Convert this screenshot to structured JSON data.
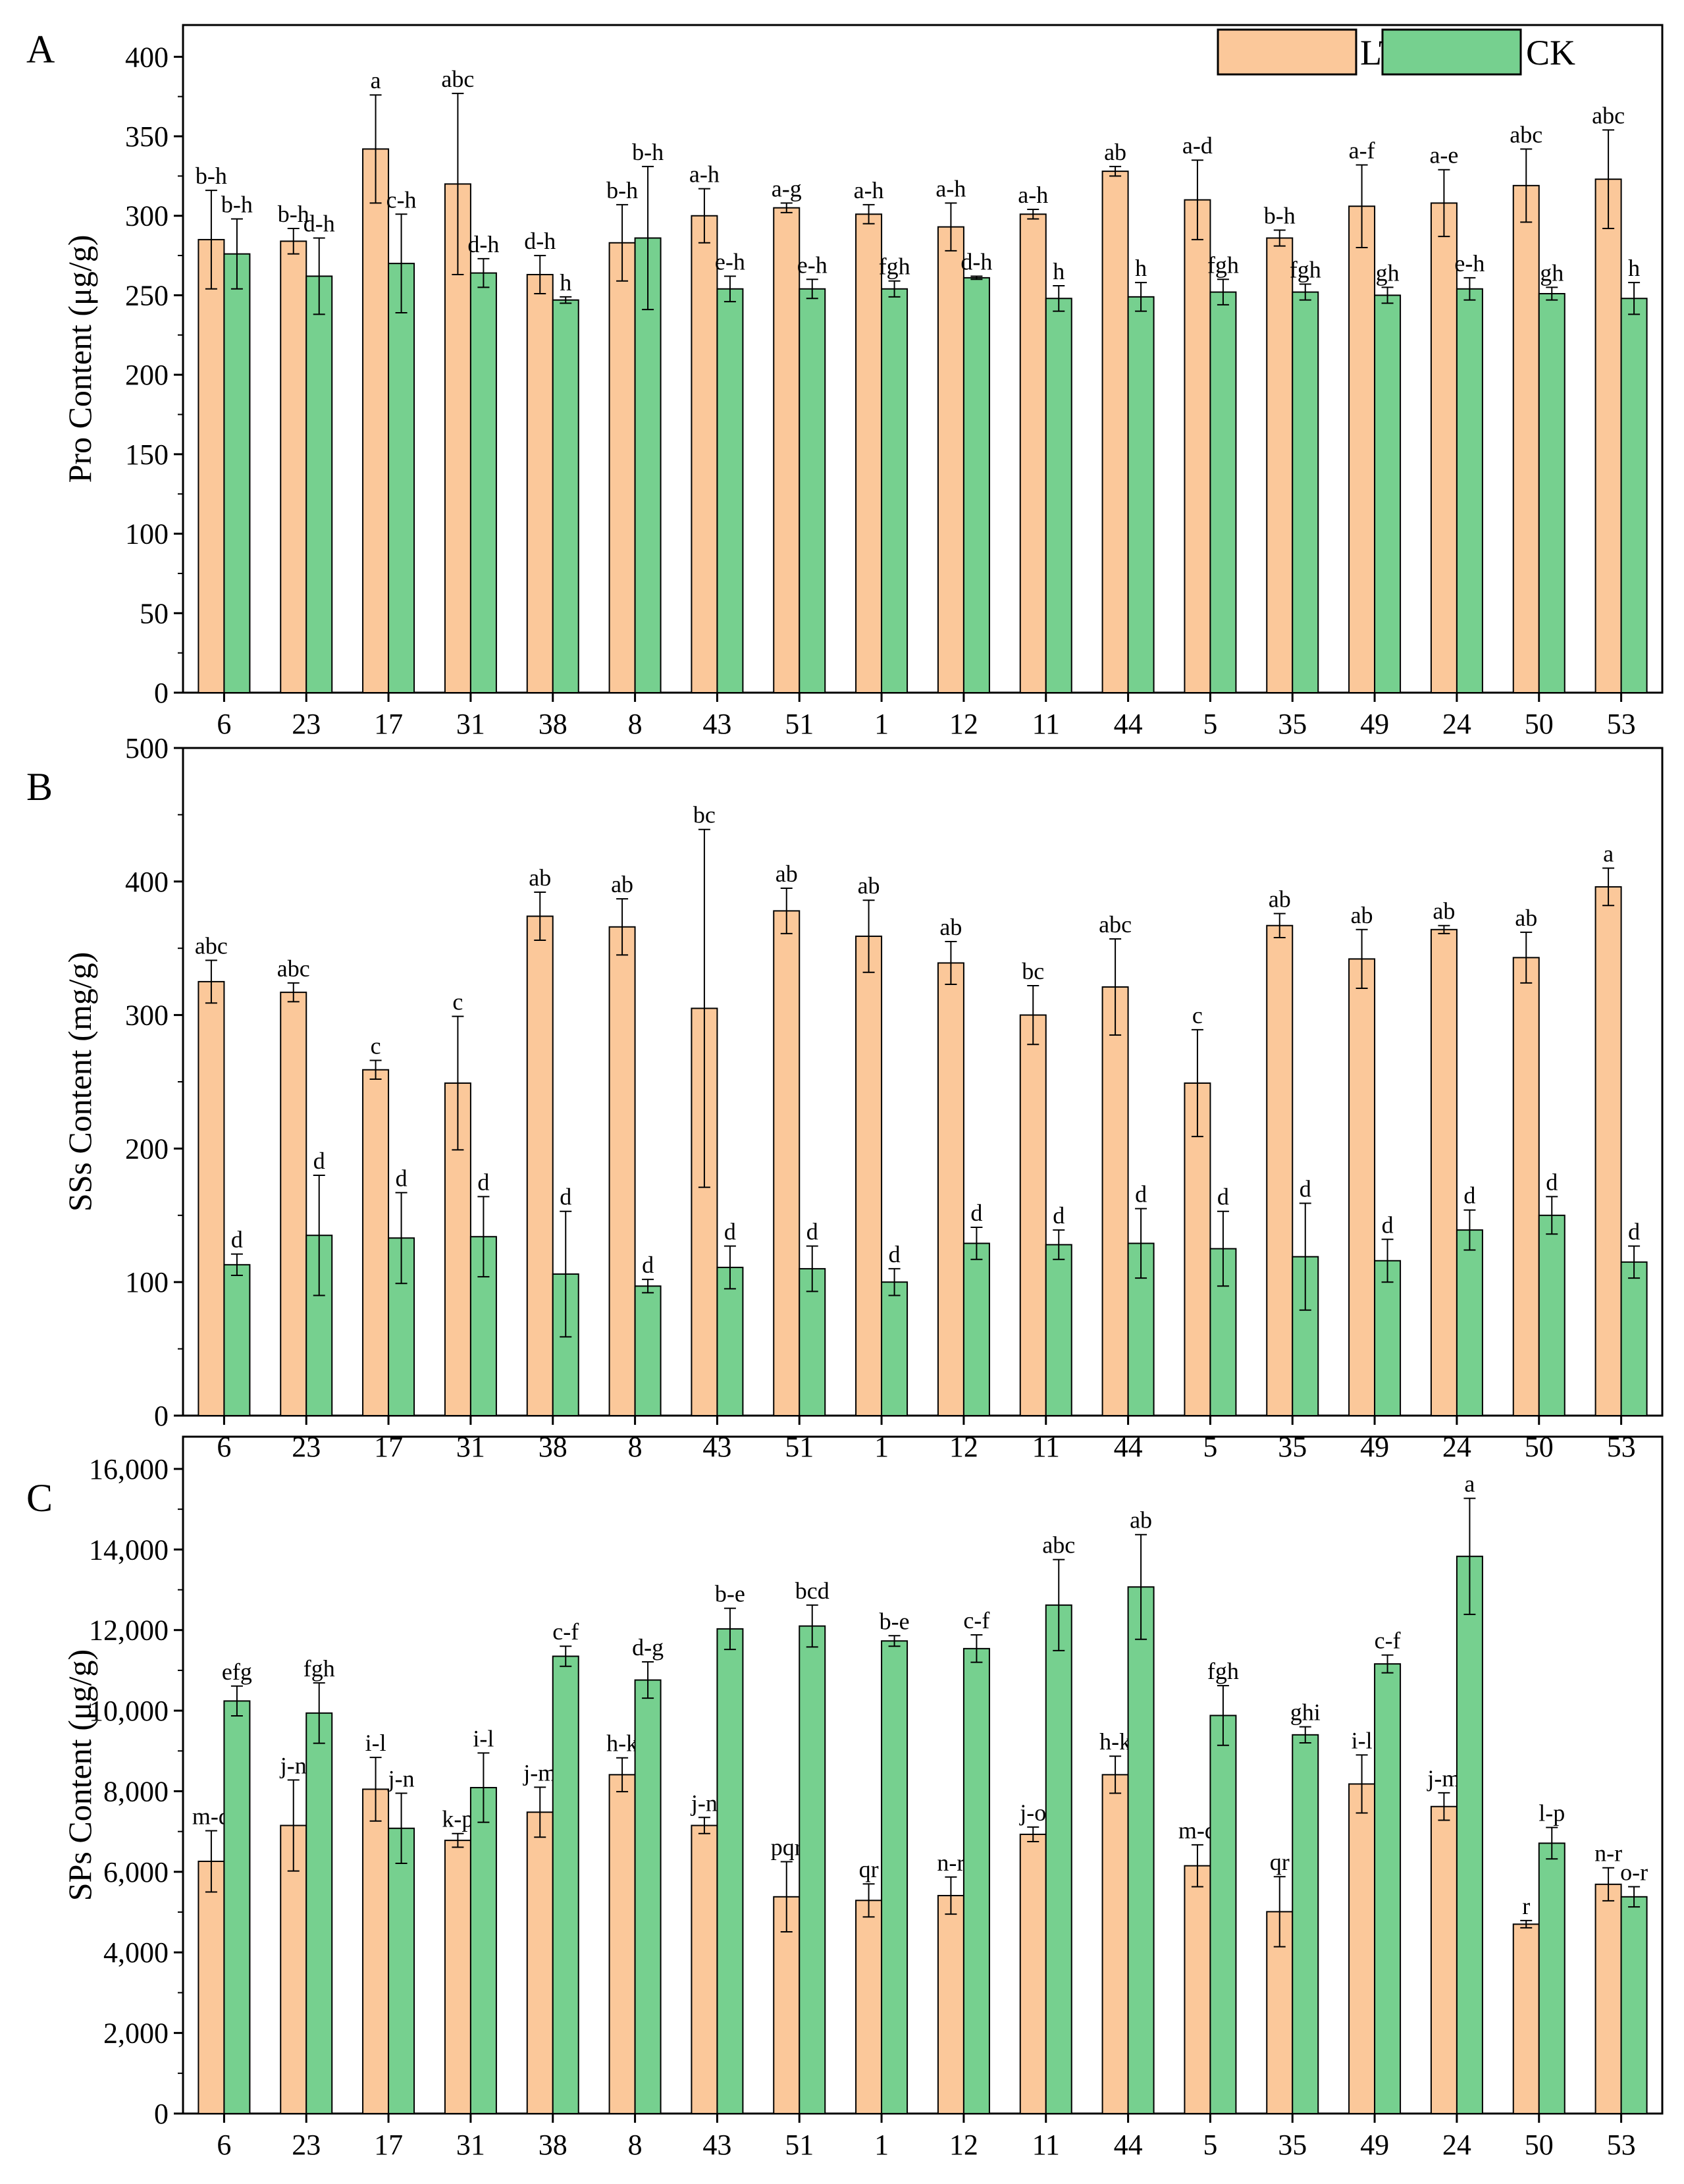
{
  "figure": {
    "legend": [
      {
        "key": "LT",
        "label": "LT",
        "color": "#fbc89a"
      },
      {
        "key": "CK",
        "label": "CK",
        "color": "#76d08f"
      }
    ]
  },
  "chart_data": [
    {
      "type": "bar",
      "panel": "A",
      "ylabel": "Pro Content (μg/g)",
      "ylim": [
        0,
        420
      ],
      "ticks": [
        0,
        50,
        100,
        150,
        200,
        250,
        300,
        350,
        400
      ],
      "tick_labels": [
        "0",
        "50",
        "100",
        "150",
        "200",
        "250",
        "300",
        "350",
        "400"
      ],
      "categories": [
        "6",
        "23",
        "17",
        "31",
        "38",
        "8",
        "43",
        "51",
        "1",
        "12",
        "11",
        "44",
        "5",
        "35",
        "49",
        "24",
        "50",
        "53"
      ],
      "series": [
        {
          "name": "LT",
          "values": [
            285,
            284,
            342,
            320,
            263,
            283,
            300,
            305,
            301,
            293,
            301,
            328,
            310,
            286,
            306,
            308,
            319,
            323
          ],
          "errors": [
            31,
            8,
            34,
            57,
            12,
            24,
            17,
            3,
            6,
            15,
            3,
            3,
            25,
            5,
            26,
            21,
            23,
            31
          ],
          "letters": [
            "b-h",
            "b-h",
            "a",
            "abc",
            "d-h",
            "b-h",
            "a-h",
            "a-g",
            "a-h",
            "a-h",
            "a-h",
            "ab",
            "a-d",
            "b-h",
            "a-f",
            "a-e",
            "abc",
            "abc"
          ]
        },
        {
          "name": "CK",
          "values": [
            276,
            262,
            270,
            264,
            247,
            286,
            254,
            254,
            254,
            261,
            248,
            249,
            252,
            252,
            250,
            254,
            251,
            248
          ],
          "errors": [
            22,
            24,
            31,
            9,
            2,
            45,
            8,
            6,
            5,
            1,
            8,
            9,
            8,
            5,
            5,
            7,
            4,
            10
          ],
          "letters": [
            "b-h",
            "d-h",
            "c-h",
            "d-h",
            "h",
            "b-h",
            "e-h",
            "e-h",
            "fgh",
            "d-h",
            "h",
            "h",
            "fgh",
            "fgh",
            "gh",
            "e-h",
            "gh",
            "h"
          ]
        }
      ]
    },
    {
      "type": "bar",
      "panel": "B",
      "ylabel": "SSs Content (mg/g)",
      "ylim": [
        0,
        500
      ],
      "ticks": [
        0,
        100,
        200,
        300,
        400,
        500
      ],
      "tick_labels": [
        "0",
        "100",
        "200",
        "300",
        "400",
        "500"
      ],
      "categories": [
        "6",
        "23",
        "17",
        "31",
        "38",
        "8",
        "43",
        "51",
        "1",
        "12",
        "11",
        "44",
        "5",
        "35",
        "49",
        "24",
        "50",
        "53"
      ],
      "series": [
        {
          "name": "LT",
          "values": [
            325,
            317,
            259,
            249,
            374,
            366,
            305,
            378,
            359,
            339,
            300,
            321,
            249,
            367,
            342,
            364,
            343,
            396
          ],
          "errors": [
            16,
            7,
            7,
            50,
            18,
            21,
            134,
            17,
            27,
            16,
            22,
            36,
            40,
            9,
            22,
            3,
            19,
            14
          ],
          "letters": [
            "abc",
            "abc",
            "c",
            "c",
            "ab",
            "ab",
            "bc",
            "ab",
            "ab",
            "ab",
            "bc",
            "abc",
            "c",
            "ab",
            "ab",
            "ab",
            "ab",
            "a"
          ]
        },
        {
          "name": "CK",
          "values": [
            113,
            135,
            133,
            134,
            106,
            97,
            111,
            110,
            100,
            129,
            128,
            129,
            125,
            119,
            116,
            139,
            150,
            115
          ],
          "errors": [
            8,
            45,
            34,
            30,
            47,
            5,
            16,
            17,
            10,
            12,
            11,
            26,
            28,
            40,
            16,
            15,
            14,
            12
          ],
          "letters": [
            "d",
            "d",
            "d",
            "d",
            "d",
            "d",
            "d",
            "d",
            "d",
            "d",
            "d",
            "d",
            "d",
            "d",
            "d",
            "d",
            "d",
            "d"
          ]
        }
      ]
    },
    {
      "type": "bar",
      "panel": "C",
      "ylabel": "SPs Content (μg/g)",
      "ylim": [
        0,
        16800
      ],
      "ticks": [
        0,
        2000,
        4000,
        6000,
        8000,
        10000,
        12000,
        14000,
        16000
      ],
      "tick_labels": [
        "0",
        "2,000",
        "4,000",
        "6,000",
        "8,000",
        "10,000",
        "12,000",
        "14,000",
        "16,000"
      ],
      "categories": [
        "6",
        "23",
        "17",
        "31",
        "38",
        "8",
        "43",
        "51",
        "1",
        "12",
        "11",
        "44",
        "5",
        "35",
        "49",
        "24",
        "50",
        "53"
      ],
      "series": [
        {
          "name": "LT",
          "values": [
            6260,
            7150,
            8050,
            6780,
            7480,
            8410,
            7150,
            5380,
            5290,
            5410,
            6930,
            8410,
            6150,
            5010,
            8180,
            7620,
            4700,
            5690
          ],
          "errors": [
            760,
            1130,
            790,
            170,
            620,
            420,
            200,
            870,
            410,
            460,
            180,
            460,
            520,
            870,
            720,
            340,
            90,
            410
          ],
          "letters": [
            "m-q",
            "j-n",
            "i-l",
            "k-p",
            "j-m",
            "h-k",
            "j-n",
            "pqr",
            "qr",
            "n-r",
            "j-o",
            "h-k",
            "m-q",
            "qr",
            "i-l",
            "j-m",
            "r",
            "n-r"
          ]
        },
        {
          "name": "CK",
          "values": [
            10240,
            9940,
            7080,
            8090,
            11350,
            10760,
            12030,
            12100,
            11730,
            11540,
            12620,
            13070,
            9880,
            9400,
            11160,
            13830,
            6710,
            5380
          ],
          "errors": [
            370,
            750,
            870,
            860,
            250,
            450,
            510,
            520,
            130,
            340,
            1130,
            1300,
            740,
            200,
            220,
            1440,
            390,
            250
          ],
          "letters": [
            "efg",
            "fgh",
            "j-n",
            "i-l",
            "c-f",
            "d-g",
            "b-e",
            "bcd",
            "b-e",
            "c-f",
            "abc",
            "ab",
            "fgh",
            "ghi",
            "c-f",
            "a",
            "l-p",
            "o-r"
          ]
        }
      ]
    }
  ]
}
